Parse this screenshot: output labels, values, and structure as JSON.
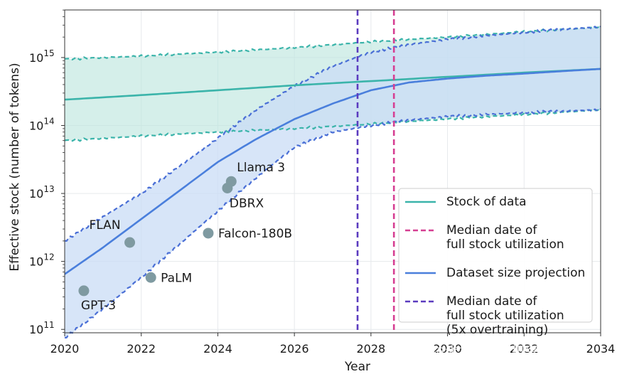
{
  "chart_data": {
    "type": "line",
    "xlabel": "Year",
    "ylabel": "Effective stock (number of tokens)",
    "xlim": [
      2020,
      2034
    ],
    "ylim_log10": [
      10.95,
      15.7
    ],
    "y_scale": "log",
    "grid": true,
    "legend_position": "lower-right",
    "x_ticks": [
      "2020",
      "2022",
      "2024",
      "2026",
      "2028",
      "2030",
      "2032",
      "2034"
    ],
    "y_ticks": [
      {
        "base": "10",
        "exp": "11",
        "log10": 11
      },
      {
        "base": "10",
        "exp": "12",
        "log10": 12
      },
      {
        "base": "10",
        "exp": "13",
        "log10": 13
      },
      {
        "base": "10",
        "exp": "14",
        "log10": 14
      },
      {
        "base": "10",
        "exp": "15",
        "log10": 15
      }
    ],
    "colors": {
      "stock": "#3bb4aa",
      "stock_fill": "#bfe6df",
      "projection": "#4a7fdc",
      "projection_fill": "#c9dcf5",
      "proj_band_upper": "#4a6fd6",
      "median_full": "#d63f92",
      "median_5x": "#5b3bbf",
      "points": "#7f9aa1"
    },
    "series": [
      {
        "name": "Stock of data",
        "x": [
          2020,
          2022,
          2024,
          2026,
          2028,
          2030,
          2032,
          2034
        ],
        "y": [
          240000000000000.0,
          280000000000000.0,
          330000000000000.0,
          390000000000000.0,
          450000000000000.0,
          520000000000000.0,
          600000000000000.0,
          680000000000000.0
        ],
        "lower": [
          60000000000000.0,
          70000000000000.0,
          80000000000000.0,
          90000000000000.0,
          105000000000000.0,
          125000000000000.0,
          145000000000000.0,
          170000000000000.0
        ],
        "upper": [
          950000000000000.0,
          1050000000000000.0,
          1200000000000000.0,
          1400000000000000.0,
          1700000000000000.0,
          2000000000000000.0,
          2400000000000000.0,
          2800000000000000.0
        ]
      },
      {
        "name": "Dataset size projection",
        "x": [
          2020,
          2021,
          2022,
          2023,
          2024,
          2025,
          2026,
          2027,
          2028,
          2029,
          2030,
          2031,
          2032,
          2033,
          2034
        ],
        "y": [
          650000000000.0,
          1600000000000.0,
          4200000000000.0,
          11000000000000.0,
          29000000000000.0,
          63000000000000.0,
          124000000000000.0,
          210000000000000.0,
          330000000000000.0,
          430000000000000.0,
          490000000000000.0,
          540000000000000.0,
          580000000000000.0,
          630000000000000.0,
          680000000000000.0
        ],
        "lower": [
          75000000000.0,
          200000000000.0,
          580000000000.0,
          1800000000000.0,
          5500000000000.0,
          17000000000000.0,
          48000000000000.0,
          80000000000000.0,
          100000000000000.0,
          120000000000000.0,
          135000000000000.0,
          145000000000000.0,
          155000000000000.0,
          162000000000000.0,
          170000000000000.0
        ],
        "upper": [
          2000000000000.0,
          4500000000000.0,
          10000000000000.0,
          25000000000000.0,
          65000000000000.0,
          170000000000000.0,
          380000000000000.0,
          750000000000000.0,
          1200000000000000.0,
          1550000000000000.0,
          1850000000000000.0,
          2100000000000000.0,
          2350000000000000.0,
          2600000000000000.0,
          2800000000000000.0
        ]
      }
    ],
    "vertical_lines": [
      {
        "name": "Median date of full stock utilization",
        "x": 2028.6,
        "color_key": "median_full"
      },
      {
        "name": "Median date of full stock utilization (5x overtraining)",
        "x": 2027.65,
        "color_key": "median_5x"
      }
    ],
    "points": [
      {
        "label": "GPT-3",
        "x": 2020.5,
        "y": 370000000000.0,
        "label_pos": "below"
      },
      {
        "label": "FLAN",
        "x": 2021.7,
        "y": 1900000000000.0,
        "label_pos": "upper-left"
      },
      {
        "label": "PaLM",
        "x": 2022.25,
        "y": 580000000000.0,
        "label_pos": "right"
      },
      {
        "label": "Falcon-180B",
        "x": 2023.75,
        "y": 2600000000000.0,
        "label_pos": "right"
      },
      {
        "label": "DBRX",
        "x": 2024.25,
        "y": 12000000000000.0,
        "label_pos": "below-right"
      },
      {
        "label": "Llama 3",
        "x": 2024.35,
        "y": 15000000000000.0,
        "label_pos": "above-right"
      }
    ],
    "legend": [
      {
        "text": [
          "Stock of data"
        ],
        "style": "solid",
        "color_key": "stock"
      },
      {
        "text": [
          "Median date of",
          "full stock utilization"
        ],
        "style": "dashed",
        "color_key": "median_full"
      },
      {
        "text": [
          "Dataset size projection"
        ],
        "style": "solid",
        "color_key": "projection"
      },
      {
        "text": [
          "Median date of",
          "full stock utilization",
          "(5x overtraining)"
        ],
        "style": "dashed",
        "color_key": "median_5x"
      }
    ]
  },
  "watermark": "掘金技术社区 @ 机器之心"
}
